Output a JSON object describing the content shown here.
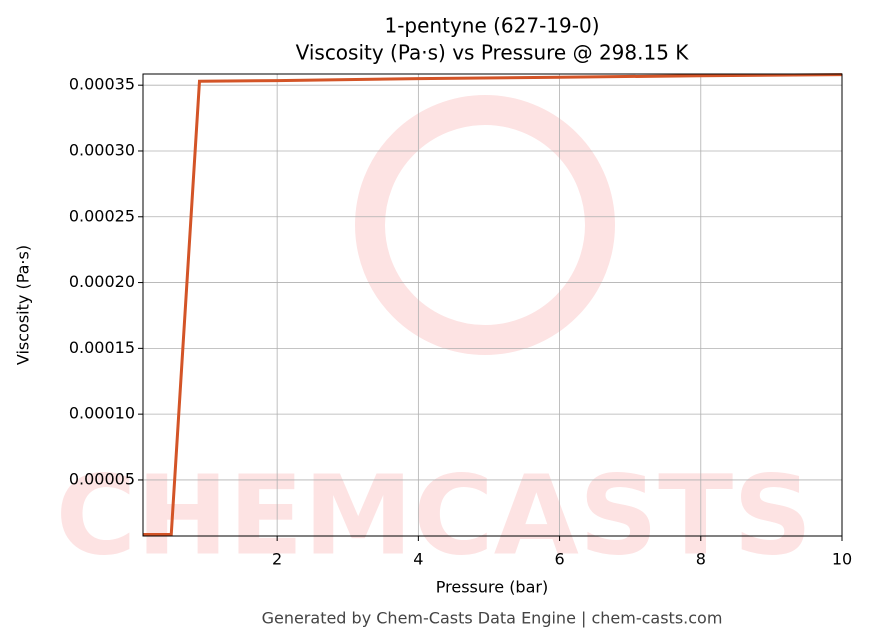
{
  "chart_data": {
    "type": "line",
    "title": "1-pentyne (627-19-0)",
    "subtitle": "Viscosity (Pa·s) vs Pressure @ 298.15 K",
    "x_label": "Pressure (bar)",
    "y_label": "Viscosity (Pa·s)",
    "footer": "Generated by Chem-Casts Data Engine | chem-casts.com",
    "watermark": "CHEMCASTS",
    "x": [
      0.1,
      0.5,
      0.9,
      2,
      4,
      6,
      8,
      10
    ],
    "series": [
      {
        "name": "Viscosity",
        "color": "#d35427",
        "values": [
          8.5e-06,
          8.5e-06,
          0.000353,
          0.0003535,
          0.000355,
          0.000356,
          0.0003572,
          0.000358
        ]
      }
    ],
    "xlim": [
      0.1,
      10
    ],
    "ylim": [
      7.4e-06,
      0.0003585
    ],
    "xticks": [
      2,
      4,
      6,
      8,
      10
    ],
    "yticks": [
      {
        "value": 5e-05,
        "label": "0.00005"
      },
      {
        "value": 0.0001,
        "label": "0.00010"
      },
      {
        "value": 0.00015,
        "label": "0.00015"
      },
      {
        "value": 0.0002,
        "label": "0.00020"
      },
      {
        "value": 0.00025,
        "label": "0.00025"
      },
      {
        "value": 0.0003,
        "label": "0.00030"
      },
      {
        "value": 0.00035,
        "label": "0.00035"
      }
    ],
    "grid": true
  }
}
